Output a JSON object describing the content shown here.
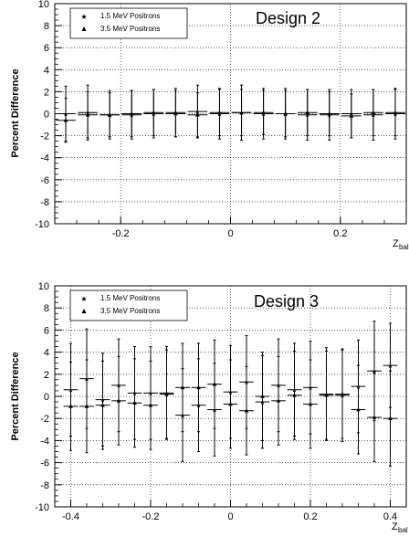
{
  "chart_data": [
    {
      "type": "scatter",
      "title": "Design 2",
      "ylabel": "Percent Difference",
      "xlabel_main": "Z",
      "xlabel_sub": "bal",
      "xlim": [
        -0.32,
        0.32
      ],
      "ylim": [
        -10,
        10
      ],
      "xticks": [
        -0.2,
        0,
        0.2
      ],
      "xtick_labels": [
        "-0.2",
        "0",
        "0.2"
      ],
      "yticks": [
        -10,
        -8,
        -6,
        -4,
        -2,
        0,
        2,
        4,
        6,
        8,
        10
      ],
      "ytick_labels": [
        "-10",
        "-8",
        "-6",
        "-4",
        "-2",
        "0",
        "2",
        "4",
        "6",
        "8",
        "10"
      ],
      "grid": true,
      "legend_position": "top-left",
      "series": [
        {
          "name": "1.5 MeV Positrons",
          "marker": "star",
          "x": [
            -0.3,
            -0.26,
            -0.22,
            -0.18,
            -0.14,
            -0.1,
            -0.06,
            -0.02,
            0.02,
            0.06,
            0.1,
            0.14,
            0.18,
            0.22,
            0.26,
            0.3
          ],
          "y": [
            0.0,
            0.1,
            -0.1,
            -0.1,
            0.0,
            0.1,
            0.2,
            0.0,
            0.1,
            0.0,
            0.0,
            -0.1,
            -0.1,
            0.0,
            -0.1,
            0.0
          ],
          "yerr": [
            2.5,
            2.5,
            2.2,
            2.2,
            2.2,
            2.2,
            2.4,
            2.3,
            2.5,
            2.3,
            2.3,
            2.3,
            2.3,
            2.2,
            2.3,
            2.3
          ]
        },
        {
          "name": "3.5 MeV Positrons",
          "marker": "triangle",
          "x": [
            -0.3,
            -0.26,
            -0.22,
            -0.18,
            -0.14,
            -0.1,
            -0.06,
            -0.02,
            0.02,
            0.06,
            0.1,
            0.14,
            0.18,
            0.22,
            0.26,
            0.3
          ],
          "y": [
            -0.6,
            -0.1,
            -0.1,
            0.0,
            0.1,
            0.0,
            -0.1,
            0.1,
            0.1,
            0.1,
            0.0,
            0.1,
            0.0,
            -0.2,
            0.1,
            0.1
          ],
          "yerr": [
            2.0,
            2.1,
            2.0,
            2.1,
            2.1,
            2.1,
            2.0,
            2.1,
            2.1,
            2.0,
            2.1,
            2.1,
            2.0,
            2.0,
            2.1,
            2.1
          ]
        }
      ],
      "xerr": 0.018
    },
    {
      "type": "scatter",
      "title": "Design 3",
      "ylabel": "Percent Difference",
      "xlabel_main": "Z",
      "xlabel_sub": "bal",
      "xlim": [
        -0.44,
        0.44
      ],
      "ylim": [
        -10,
        10
      ],
      "xticks": [
        -0.4,
        -0.2,
        0,
        0.2,
        0.4
      ],
      "xtick_labels": [
        "-0.4",
        "-0.2",
        "0",
        "0.2",
        "0.4"
      ],
      "yticks": [
        -10,
        -8,
        -6,
        -4,
        -2,
        0,
        2,
        4,
        6,
        8,
        10
      ],
      "ytick_labels": [
        "-10",
        "-8",
        "-6",
        "-4",
        "-2",
        "0",
        "2",
        "4",
        "6",
        "8",
        "10"
      ],
      "grid": true,
      "legend_position": "top-left",
      "series": [
        {
          "name": "1.5 MeV Positrons",
          "marker": "star",
          "x": [
            -0.4,
            -0.36,
            -0.32,
            -0.28,
            -0.24,
            -0.2,
            -0.16,
            -0.12,
            -0.08,
            -0.04,
            0.0,
            0.04,
            0.08,
            0.12,
            0.16,
            0.2,
            0.24,
            0.28,
            0.32,
            0.36,
            0.4
          ],
          "y": [
            0.6,
            1.6,
            -0.3,
            1.0,
            0.3,
            0.3,
            0.3,
            -1.7,
            -0.8,
            -1.2,
            0.4,
            1.3,
            -0.5,
            1.0,
            0.6,
            0.8,
            0.2,
            0.1,
            0.9,
            2.3,
            2.8
          ],
          "yerr": [
            4.2,
            4.5,
            4.2,
            4.2,
            4.2,
            4.2,
            4.2,
            4.2,
            4.2,
            4.2,
            4.2,
            4.2,
            4.2,
            4.2,
            4.2,
            4.2,
            4.2,
            4.2,
            4.2,
            4.5,
            3.8
          ]
        },
        {
          "name": "3.5 MeV Positrons",
          "marker": "triangle",
          "x": [
            -0.4,
            -0.36,
            -0.32,
            -0.28,
            -0.24,
            -0.2,
            -0.16,
            -0.12,
            -0.08,
            -0.04,
            0.0,
            0.04,
            0.08,
            0.12,
            0.16,
            0.2,
            0.24,
            0.28,
            0.32,
            0.36,
            0.4
          ],
          "y": [
            -0.9,
            -0.9,
            -0.8,
            -0.4,
            -0.6,
            -0.8,
            0.2,
            0.8,
            0.8,
            1.1,
            -0.7,
            -1.3,
            0.0,
            -0.4,
            0.1,
            -0.7,
            0.1,
            0.2,
            -1.2,
            -1.9,
            -2.0
          ],
          "yerr": [
            4.0,
            4.2,
            4.0,
            4.0,
            4.0,
            4.0,
            4.0,
            4.0,
            4.0,
            4.0,
            4.0,
            4.0,
            4.0,
            4.0,
            4.0,
            4.0,
            4.0,
            4.0,
            4.0,
            4.0,
            4.3
          ]
        }
      ],
      "xerr": 0.018
    }
  ]
}
